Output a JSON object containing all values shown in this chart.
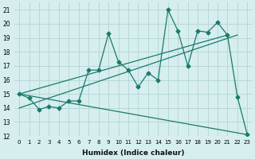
{
  "xlabel": "Humidex (Indice chaleur)",
  "background_color": "#d6eeee",
  "grid_color": "#b8d8d8",
  "line_color": "#1a7a6a",
  "xlim": [
    -0.5,
    23.5
  ],
  "ylim": [
    12,
    21.5
  ],
  "xticks": [
    0,
    1,
    2,
    3,
    4,
    5,
    6,
    7,
    8,
    9,
    10,
    11,
    12,
    13,
    14,
    15,
    16,
    17,
    18,
    19,
    20,
    21,
    22,
    23
  ],
  "yticks": [
    12,
    13,
    14,
    15,
    16,
    17,
    18,
    19,
    20,
    21
  ],
  "series1_x": [
    0,
    1,
    2,
    3,
    4,
    5,
    6,
    7,
    8,
    9,
    10,
    11,
    12,
    13,
    14,
    15,
    16,
    17,
    18,
    19,
    20,
    21,
    22,
    23
  ],
  "series1_y": [
    15.0,
    14.7,
    13.9,
    14.1,
    14.0,
    14.5,
    14.5,
    16.7,
    16.7,
    19.3,
    17.3,
    16.7,
    15.5,
    16.5,
    16.0,
    21.0,
    19.5,
    17.0,
    19.5,
    19.4,
    20.1,
    19.2,
    14.8,
    12.1
  ],
  "line1_x": [
    0,
    23
  ],
  "line1_y": [
    15.0,
    12.1
  ],
  "line2_x": [
    0,
    22
  ],
  "line2_y": [
    14.0,
    19.2
  ],
  "line3_x": [
    0,
    21
  ],
  "line3_y": [
    15.0,
    19.2
  ]
}
